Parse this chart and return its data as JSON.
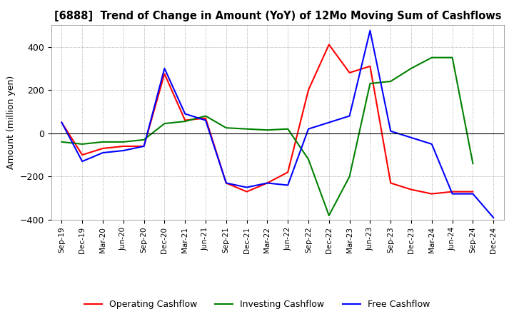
{
  "title": "[6888]  Trend of Change in Amount (YoY) of 12Mo Moving Sum of Cashflows",
  "ylabel": "Amount (million yen)",
  "x_labels": [
    "Sep-19",
    "Dec-19",
    "Mar-20",
    "Jun-20",
    "Sep-20",
    "Dec-20",
    "Mar-21",
    "Jun-21",
    "Sep-21",
    "Dec-21",
    "Mar-22",
    "Jun-22",
    "Sep-22",
    "Dec-22",
    "Mar-23",
    "Jun-23",
    "Sep-23",
    "Dec-23",
    "Mar-24",
    "Jun-24",
    "Sep-24",
    "Dec-24"
  ],
  "operating": [
    50,
    -100,
    -70,
    -60,
    -60,
    275,
    60,
    70,
    -230,
    -270,
    -230,
    -180,
    200,
    410,
    280,
    310,
    -230,
    -260,
    -280,
    -270,
    -270,
    null
  ],
  "investing": [
    -40,
    -50,
    -40,
    -40,
    -30,
    45,
    55,
    80,
    25,
    20,
    15,
    20,
    -120,
    -380,
    -200,
    230,
    240,
    300,
    350,
    350,
    -140,
    null
  ],
  "free": [
    50,
    -130,
    -90,
    -80,
    -60,
    300,
    90,
    60,
    -230,
    -250,
    -230,
    -240,
    20,
    50,
    80,
    475,
    10,
    -20,
    -50,
    -280,
    -280,
    -390
  ],
  "ylim": [
    -400,
    500
  ],
  "yticks": [
    -400,
    -200,
    0,
    200,
    400
  ],
  "colors": {
    "operating": "#ff0000",
    "investing": "#008000",
    "free": "#0000ff"
  },
  "legend_labels": [
    "Operating Cashflow",
    "Investing Cashflow",
    "Free Cashflow"
  ]
}
